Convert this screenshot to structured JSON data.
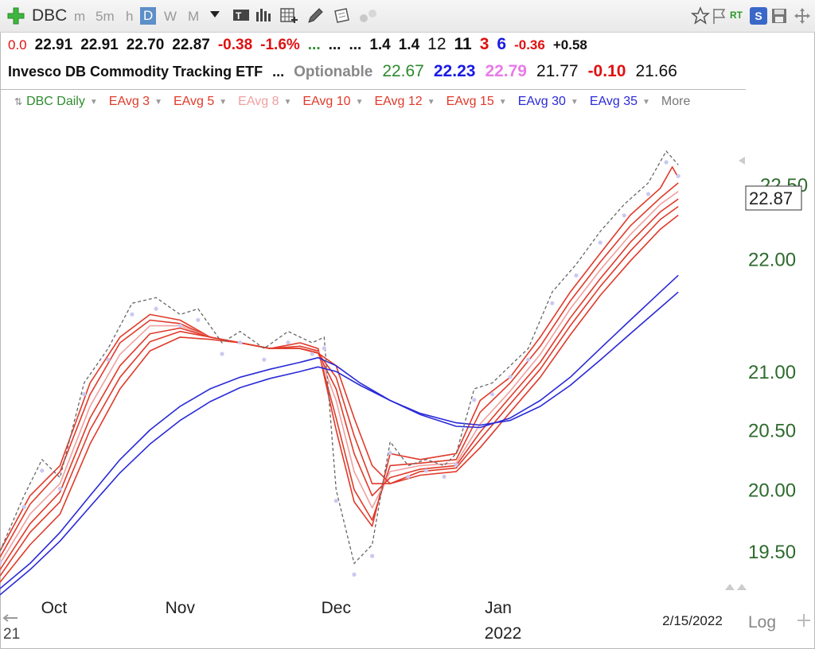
{
  "toolbar": {
    "symbol": "DBC",
    "periods": [
      "m",
      "5m",
      "h",
      "D",
      "W",
      "M"
    ],
    "active_period": "D",
    "rt_label": "RT",
    "s_label": "S"
  },
  "quote": {
    "row1": [
      {
        "text": "0.0",
        "cls": "red",
        "size": 17,
        "bold": false
      },
      {
        "text": "22.91",
        "cls": "dark",
        "size": 19,
        "bold": true
      },
      {
        "text": "22.91",
        "cls": "dark",
        "size": 19,
        "bold": true
      },
      {
        "text": "22.70",
        "cls": "dark",
        "size": 19,
        "bold": true
      },
      {
        "text": "22.87",
        "cls": "dark",
        "size": 19,
        "bold": true
      },
      {
        "text": "-0.38",
        "cls": "red",
        "size": 19,
        "bold": true
      },
      {
        "text": "-1.6%",
        "cls": "red",
        "size": 19,
        "bold": true
      },
      {
        "text": "...",
        "cls": "green",
        "size": 19,
        "bold": true
      },
      {
        "text": "...",
        "cls": "dark",
        "size": 19,
        "bold": true
      },
      {
        "text": "...",
        "cls": "dark",
        "size": 19,
        "bold": true
      },
      {
        "text": "1.4",
        "cls": "dark",
        "size": 19,
        "bold": true
      },
      {
        "text": "1.4",
        "cls": "dark",
        "size": 19,
        "bold": true
      },
      {
        "text": "12",
        "cls": "dark",
        "size": 21,
        "bold": false
      },
      {
        "text": "11",
        "cls": "dark",
        "size": 21,
        "bold": true
      },
      {
        "text": "3",
        "cls": "red",
        "size": 21,
        "bold": true
      },
      {
        "text": "6",
        "cls": "blue",
        "size": 21,
        "bold": true
      },
      {
        "text": "-0.36",
        "cls": "red",
        "size": 17,
        "bold": true
      },
      {
        "text": "+0.58",
        "cls": "dark",
        "size": 17,
        "bold": true
      }
    ],
    "row2": [
      {
        "text": "Invesco DB Commodity Tracking ETF",
        "cls": "dark",
        "size": 18,
        "bold": true
      },
      {
        "text": "...",
        "cls": "dark",
        "size": 18,
        "bold": true
      },
      {
        "text": "Optionable",
        "cls": "gray",
        "size": 19,
        "bold": true
      },
      {
        "text": "22.67",
        "cls": "green",
        "size": 21,
        "bold": false
      },
      {
        "text": "22.23",
        "cls": "blue",
        "size": 21,
        "bold": true
      },
      {
        "text": "22.79",
        "cls": "pink",
        "size": 21,
        "bold": true
      },
      {
        "text": "21.77",
        "cls": "dark",
        "size": 21,
        "bold": false
      },
      {
        "text": "-0.10",
        "cls": "red",
        "size": 21,
        "bold": true
      },
      {
        "text": "21.66",
        "cls": "dark",
        "size": 21,
        "bold": false
      }
    ]
  },
  "legend": [
    {
      "label": "DBC Daily",
      "color": "#2e8b2e"
    },
    {
      "label": "EAvg 3",
      "color": "#e03a2a"
    },
    {
      "label": "EAvg 5",
      "color": "#e03a2a"
    },
    {
      "label": "EAvg 8",
      "color": "#f0a0a0"
    },
    {
      "label": "EAvg 10",
      "color": "#e03a2a"
    },
    {
      "label": "EAvg 12",
      "color": "#e03a2a"
    },
    {
      "label": "EAvg 15",
      "color": "#e03a2a"
    },
    {
      "label": "EAvg 30",
      "color": "#2a2ad8"
    },
    {
      "label": "EAvg 35",
      "color": "#2a2ad8"
    },
    {
      "label": "More",
      "color": "#777777"
    }
  ],
  "chart_data": {
    "type": "line",
    "symbol": "DBC",
    "y_ticks": [
      "22.00",
      "21.00",
      "20.50",
      "20.00",
      "19.50"
    ],
    "y_tick_values": [
      22.0,
      21.0,
      20.5,
      20.0,
      19.5
    ],
    "partial_top_tick": "22.50",
    "ylim": [
      19.2,
      23.0
    ],
    "x_ticks": [
      "Oct",
      "Nov",
      "Dec",
      "Jan"
    ],
    "x_tick_days": [
      9,
      30,
      56,
      83
    ],
    "year_label": "2022",
    "date_label": "2/15/2022",
    "left_stub": "21",
    "scale_label": "Log",
    "last_price": "22.87",
    "x_range_days": [
      0,
      120
    ],
    "close": [
      [
        0,
        19.5
      ],
      [
        4,
        19.95
      ],
      [
        7,
        20.25
      ],
      [
        10,
        20.1
      ],
      [
        14,
        20.9
      ],
      [
        18,
        21.2
      ],
      [
        22,
        21.6
      ],
      [
        26,
        21.65
      ],
      [
        30,
        21.5
      ],
      [
        33,
        21.55
      ],
      [
        37,
        21.25
      ],
      [
        40,
        21.35
      ],
      [
        44,
        21.2
      ],
      [
        48,
        21.35
      ],
      [
        52,
        21.25
      ],
      [
        54,
        21.3
      ],
      [
        56,
        20.0
      ],
      [
        59,
        19.4
      ],
      [
        62,
        19.55
      ],
      [
        65,
        20.4
      ],
      [
        68,
        20.2
      ],
      [
        71,
        20.25
      ],
      [
        74,
        20.2
      ],
      [
        76,
        20.3
      ],
      [
        79,
        20.85
      ],
      [
        82,
        20.9
      ],
      [
        85,
        21.05
      ],
      [
        88,
        21.2
      ],
      [
        92,
        21.7
      ],
      [
        96,
        21.95
      ],
      [
        100,
        22.25
      ],
      [
        104,
        22.5
      ],
      [
        108,
        22.7
      ],
      [
        111,
        23.0
      ],
      [
        113,
        22.87
      ]
    ],
    "series": [
      {
        "name": "EAvg 3",
        "color": "#e03a2a",
        "values": [
          [
            0,
            19.5
          ],
          [
            5,
            19.95
          ],
          [
            10,
            20.2
          ],
          [
            15,
            20.9
          ],
          [
            20,
            21.3
          ],
          [
            25,
            21.5
          ],
          [
            30,
            21.45
          ],
          [
            35,
            21.3
          ],
          [
            40,
            21.25
          ],
          [
            45,
            21.2
          ],
          [
            50,
            21.25
          ],
          [
            53,
            21.2
          ],
          [
            56,
            20.5
          ],
          [
            59,
            19.9
          ],
          [
            62,
            19.7
          ],
          [
            65,
            20.3
          ],
          [
            70,
            20.25
          ],
          [
            76,
            20.3
          ],
          [
            80,
            20.75
          ],
          [
            85,
            20.95
          ],
          [
            90,
            21.3
          ],
          [
            95,
            21.7
          ],
          [
            100,
            22.05
          ],
          [
            105,
            22.4
          ],
          [
            110,
            22.65
          ],
          [
            112,
            22.85
          ],
          [
            113,
            22.75
          ]
        ]
      },
      {
        "name": "EAvg 5",
        "color": "#e03a2a",
        "values": [
          [
            0,
            19.45
          ],
          [
            5,
            19.88
          ],
          [
            10,
            20.15
          ],
          [
            15,
            20.8
          ],
          [
            20,
            21.25
          ],
          [
            25,
            21.45
          ],
          [
            30,
            21.42
          ],
          [
            35,
            21.3
          ],
          [
            40,
            21.25
          ],
          [
            45,
            21.2
          ],
          [
            50,
            21.22
          ],
          [
            53,
            21.18
          ],
          [
            56,
            20.6
          ],
          [
            59,
            20.0
          ],
          [
            62,
            19.75
          ],
          [
            65,
            20.2
          ],
          [
            70,
            20.22
          ],
          [
            76,
            20.25
          ],
          [
            80,
            20.65
          ],
          [
            85,
            20.9
          ],
          [
            90,
            21.22
          ],
          [
            95,
            21.62
          ],
          [
            100,
            21.97
          ],
          [
            105,
            22.3
          ],
          [
            110,
            22.56
          ],
          [
            113,
            22.7
          ]
        ]
      },
      {
        "name": "EAvg 8",
        "color": "#f0a0a0",
        "values": [
          [
            0,
            19.4
          ],
          [
            5,
            19.8
          ],
          [
            10,
            20.05
          ],
          [
            15,
            20.7
          ],
          [
            20,
            21.15
          ],
          [
            25,
            21.4
          ],
          [
            30,
            21.4
          ],
          [
            35,
            21.3
          ],
          [
            40,
            21.25
          ],
          [
            45,
            21.2
          ],
          [
            50,
            21.2
          ],
          [
            53,
            21.17
          ],
          [
            56,
            20.75
          ],
          [
            59,
            20.15
          ],
          [
            62,
            19.85
          ],
          [
            65,
            20.15
          ],
          [
            70,
            20.2
          ],
          [
            76,
            20.22
          ],
          [
            80,
            20.55
          ],
          [
            85,
            20.83
          ],
          [
            90,
            21.15
          ],
          [
            95,
            21.55
          ],
          [
            100,
            21.9
          ],
          [
            105,
            22.22
          ],
          [
            110,
            22.5
          ],
          [
            113,
            22.62
          ]
        ]
      },
      {
        "name": "EAvg 10",
        "color": "#e03a2a",
        "values": [
          [
            0,
            19.35
          ],
          [
            5,
            19.72
          ],
          [
            10,
            19.98
          ],
          [
            15,
            20.6
          ],
          [
            20,
            21.05
          ],
          [
            25,
            21.33
          ],
          [
            30,
            21.38
          ],
          [
            35,
            21.3
          ],
          [
            40,
            21.25
          ],
          [
            45,
            21.2
          ],
          [
            50,
            21.2
          ],
          [
            53,
            21.16
          ],
          [
            56,
            20.85
          ],
          [
            59,
            20.3
          ],
          [
            62,
            19.95
          ],
          [
            65,
            20.1
          ],
          [
            70,
            20.17
          ],
          [
            76,
            20.2
          ],
          [
            80,
            20.48
          ],
          [
            85,
            20.78
          ],
          [
            90,
            21.08
          ],
          [
            95,
            21.47
          ],
          [
            100,
            21.82
          ],
          [
            105,
            22.15
          ],
          [
            110,
            22.43
          ],
          [
            113,
            22.55
          ]
        ]
      },
      {
        "name": "EAvg 12",
        "color": "#e03a2a",
        "values": [
          [
            0,
            19.3
          ],
          [
            5,
            19.65
          ],
          [
            10,
            19.9
          ],
          [
            15,
            20.5
          ],
          [
            20,
            20.95
          ],
          [
            25,
            21.26
          ],
          [
            30,
            21.35
          ],
          [
            35,
            21.3
          ],
          [
            40,
            21.25
          ],
          [
            45,
            21.2
          ],
          [
            50,
            21.2
          ],
          [
            53,
            21.16
          ],
          [
            56,
            20.95
          ],
          [
            59,
            20.45
          ],
          [
            62,
            20.05
          ],
          [
            65,
            20.05
          ],
          [
            70,
            20.15
          ],
          [
            76,
            20.18
          ],
          [
            80,
            20.42
          ],
          [
            85,
            20.72
          ],
          [
            90,
            21.02
          ],
          [
            95,
            21.4
          ],
          [
            100,
            21.75
          ],
          [
            105,
            22.07
          ],
          [
            110,
            22.36
          ],
          [
            113,
            22.48
          ]
        ]
      },
      {
        "name": "EAvg 15",
        "color": "#e03a2a",
        "values": [
          [
            0,
            19.25
          ],
          [
            5,
            19.55
          ],
          [
            10,
            19.8
          ],
          [
            15,
            20.38
          ],
          [
            20,
            20.85
          ],
          [
            25,
            21.18
          ],
          [
            30,
            21.3
          ],
          [
            35,
            21.28
          ],
          [
            40,
            21.25
          ],
          [
            45,
            21.2
          ],
          [
            50,
            21.2
          ],
          [
            53,
            21.16
          ],
          [
            56,
            21.05
          ],
          [
            59,
            20.6
          ],
          [
            62,
            20.2
          ],
          [
            65,
            20.05
          ],
          [
            70,
            20.12
          ],
          [
            76,
            20.15
          ],
          [
            80,
            20.35
          ],
          [
            85,
            20.65
          ],
          [
            90,
            20.95
          ],
          [
            95,
            21.32
          ],
          [
            100,
            21.67
          ],
          [
            105,
            21.98
          ],
          [
            110,
            22.27
          ],
          [
            113,
            22.4
          ]
        ]
      },
      {
        "name": "EAvg 30",
        "color": "#2a2ad8",
        "values": [
          [
            0,
            19.2
          ],
          [
            5,
            19.4
          ],
          [
            10,
            19.65
          ],
          [
            15,
            19.95
          ],
          [
            20,
            20.25
          ],
          [
            25,
            20.5
          ],
          [
            30,
            20.7
          ],
          [
            35,
            20.85
          ],
          [
            40,
            20.95
          ],
          [
            45,
            21.02
          ],
          [
            50,
            21.08
          ],
          [
            53,
            21.12
          ],
          [
            56,
            21.05
          ],
          [
            60,
            20.9
          ],
          [
            65,
            20.75
          ],
          [
            70,
            20.63
          ],
          [
            76,
            20.53
          ],
          [
            80,
            20.52
          ],
          [
            85,
            20.6
          ],
          [
            90,
            20.75
          ],
          [
            95,
            20.95
          ],
          [
            100,
            21.2
          ],
          [
            105,
            21.45
          ],
          [
            110,
            21.7
          ],
          [
            113,
            21.85
          ]
        ]
      },
      {
        "name": "EAvg 35",
        "color": "#2a2ad8",
        "values": [
          [
            0,
            19.15
          ],
          [
            5,
            19.35
          ],
          [
            10,
            19.58
          ],
          [
            15,
            19.86
          ],
          [
            20,
            20.14
          ],
          [
            25,
            20.38
          ],
          [
            30,
            20.58
          ],
          [
            35,
            20.74
          ],
          [
            40,
            20.86
          ],
          [
            45,
            20.94
          ],
          [
            50,
            21.0
          ],
          [
            53,
            21.04
          ],
          [
            56,
            21.0
          ],
          [
            60,
            20.88
          ],
          [
            65,
            20.75
          ],
          [
            70,
            20.64
          ],
          [
            76,
            20.56
          ],
          [
            80,
            20.54
          ],
          [
            85,
            20.58
          ],
          [
            90,
            20.7
          ],
          [
            95,
            20.88
          ],
          [
            100,
            21.1
          ],
          [
            105,
            21.33
          ],
          [
            110,
            21.56
          ],
          [
            113,
            21.7
          ]
        ]
      }
    ]
  }
}
